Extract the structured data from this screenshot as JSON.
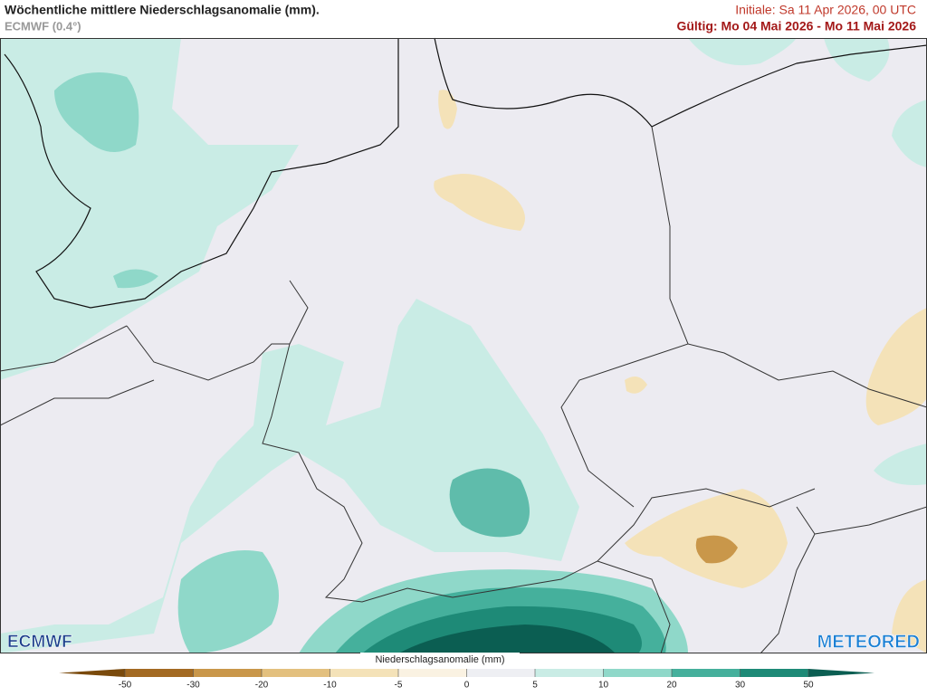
{
  "header": {
    "title": "Wöchentliche mittlere Niederschlagsanomalie (mm).",
    "model": "ECMWF (0.4°)",
    "init": "Initiale:  Sa 11 Apr 2026, 00 UTC",
    "valid": "Gültig: Mo 04 Mai 2026 - Mo 11 Mai 2026"
  },
  "logos": {
    "left": "ECMWF",
    "right": "METEORED"
  },
  "colorbar": {
    "label": "Niederschlagsanomalie (mm)",
    "ticks": [
      -50,
      -30,
      -20,
      -10,
      -5,
      0,
      5,
      10,
      20,
      30,
      50
    ],
    "colors": [
      "#7a4a0c",
      "#a36a22",
      "#c9974a",
      "#e3c07e",
      "#f4e2b8",
      "#faf2e2",
      "#eeeff3",
      "#c9ece5",
      "#8fd8c9",
      "#45b09c",
      "#1e8a77",
      "#0b5e52"
    ]
  }
}
